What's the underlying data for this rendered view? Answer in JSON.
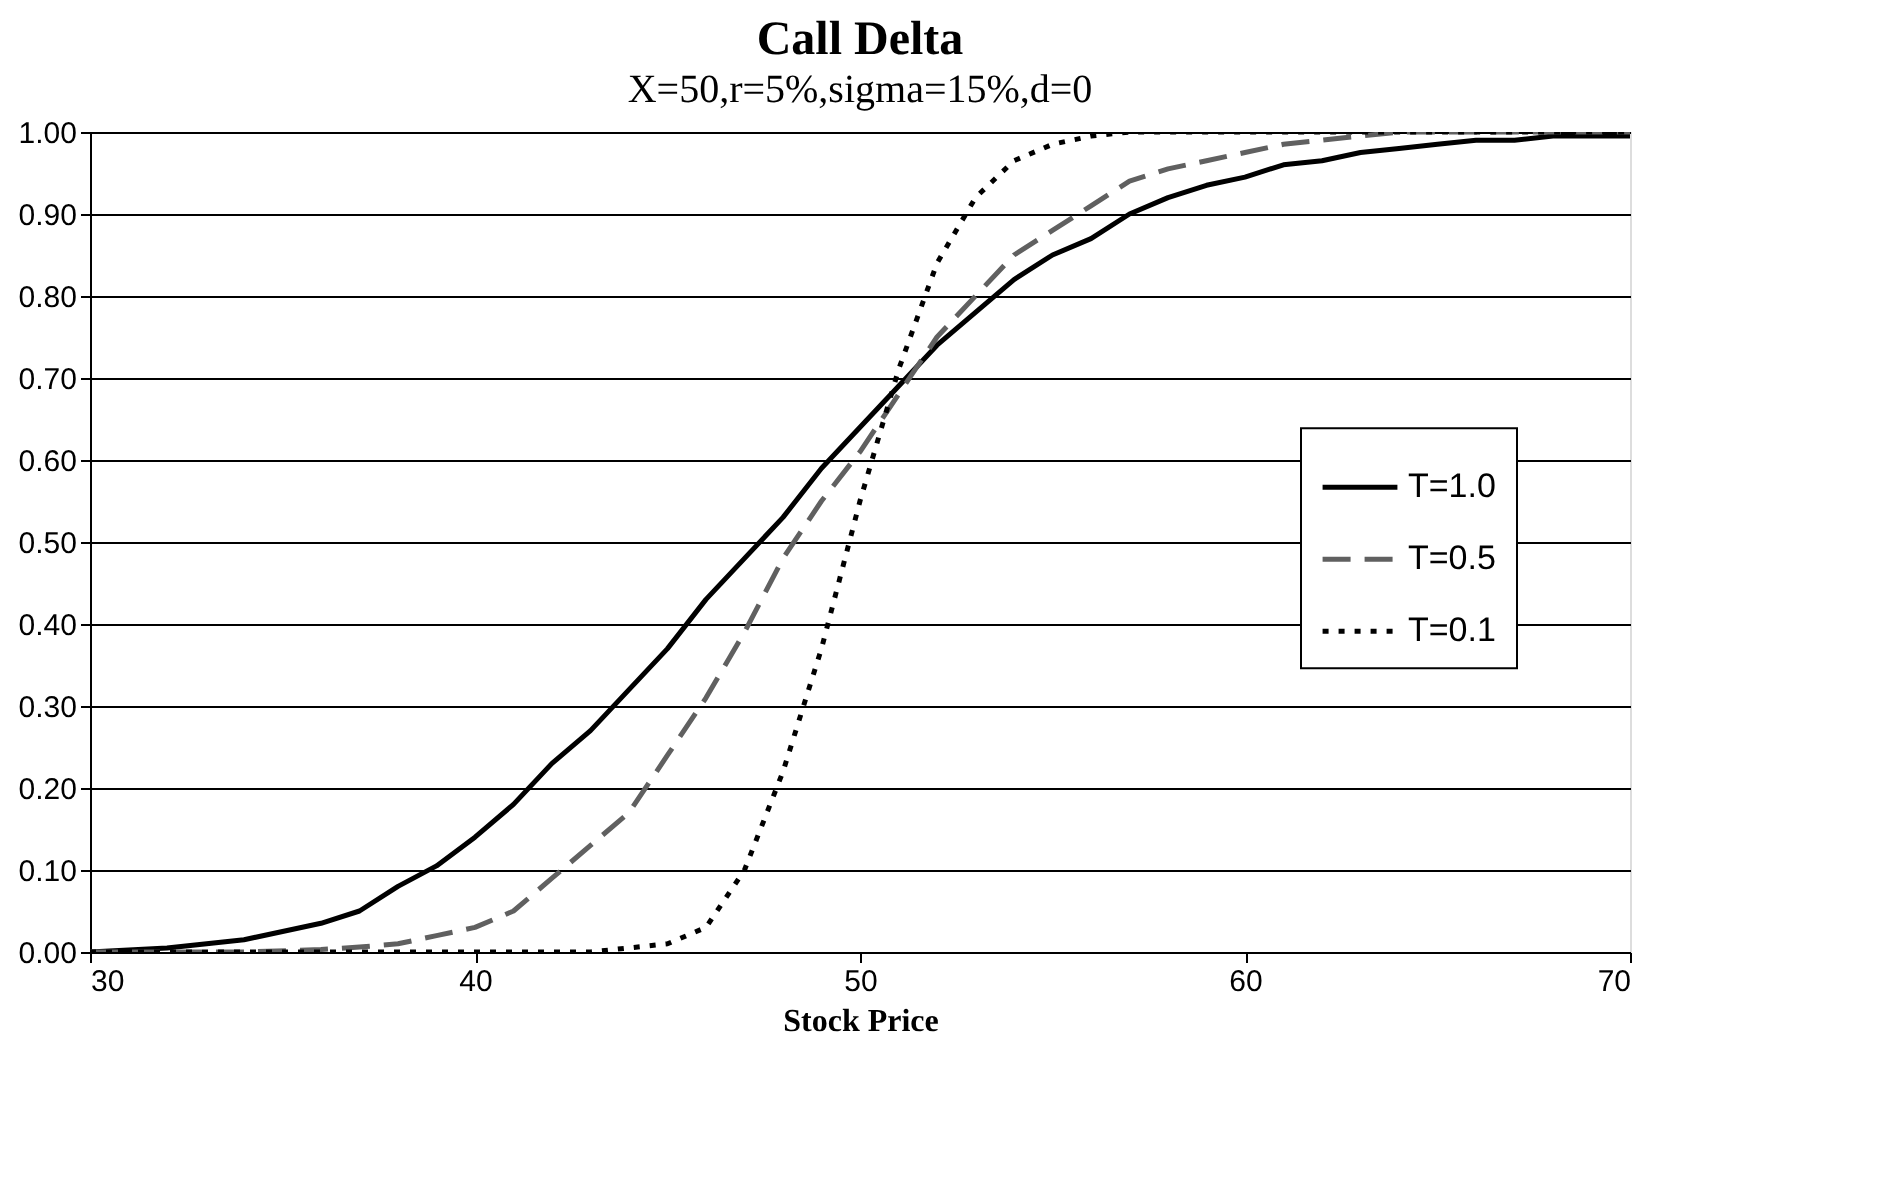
{
  "chart_data": {
    "type": "line",
    "title": "Call Delta",
    "subtitle": "X=50,r=5%,sigma=15%,d=0",
    "xlabel": "Stock Price",
    "xlim": [
      30,
      70
    ],
    "xticks": [
      30,
      40,
      50,
      60,
      70
    ],
    "ylim": [
      0,
      1
    ],
    "yticks": [
      {
        "value": 0,
        "label": "0.00"
      },
      {
        "value": 0.1,
        "label": "0.10"
      },
      {
        "value": 0.2,
        "label": "0.20"
      },
      {
        "value": 0.3,
        "label": "0.30"
      },
      {
        "value": 0.4,
        "label": "0.40"
      },
      {
        "value": 0.5,
        "label": "0.50"
      },
      {
        "value": 0.6,
        "label": "0.60"
      },
      {
        "value": 0.7,
        "label": "0.70"
      },
      {
        "value": 0.8,
        "label": "0.80"
      },
      {
        "value": 0.9,
        "label": "0.90"
      },
      {
        "value": 1,
        "label": "1.00"
      }
    ],
    "grid": "y",
    "legend": "right",
    "marker": "none",
    "x": [
      30,
      32,
      34,
      36,
      37,
      38,
      39,
      40,
      41,
      42,
      43,
      44,
      45,
      46,
      47,
      48,
      49,
      50,
      51,
      52,
      53,
      54,
      55,
      56,
      57,
      58,
      59,
      60,
      61,
      62,
      63,
      64,
      65,
      66,
      67,
      68,
      70
    ],
    "series": [
      {
        "name": "T=1.0",
        "color": "#000000",
        "line_style": "solid",
        "values": [
          0.0,
          0.005,
          0.015,
          0.035,
          0.05,
          0.08,
          0.105,
          0.14,
          0.18,
          0.23,
          0.27,
          0.32,
          0.37,
          0.43,
          0.48,
          0.53,
          0.59,
          0.64,
          0.69,
          0.74,
          0.78,
          0.82,
          0.85,
          0.87,
          0.9,
          0.92,
          0.935,
          0.945,
          0.96,
          0.965,
          0.975,
          0.98,
          0.985,
          0.99,
          0.99,
          0.995,
          0.995
        ]
      },
      {
        "name": "T=0.5",
        "color": "#606060",
        "line_style": "dashed",
        "values": [
          0.0,
          0.0,
          0.0,
          0.003,
          0.006,
          0.01,
          0.02,
          0.03,
          0.05,
          0.09,
          0.13,
          0.17,
          0.24,
          0.31,
          0.39,
          0.48,
          0.55,
          0.61,
          0.68,
          0.75,
          0.8,
          0.85,
          0.88,
          0.91,
          0.94,
          0.955,
          0.965,
          0.975,
          0.985,
          0.99,
          0.995,
          1.0,
          1.0,
          1.0,
          1.0,
          1.0,
          1.0
        ]
      },
      {
        "name": "T=0.1",
        "color": "#000000",
        "line_style": "dotted",
        "values": [
          0.0,
          0.0,
          0.0,
          0.0,
          0.0,
          0.0,
          0.0,
          0.0,
          0.0,
          0.0,
          0.0,
          0.005,
          0.01,
          0.03,
          0.1,
          0.22,
          0.37,
          0.55,
          0.71,
          0.84,
          0.92,
          0.965,
          0.985,
          0.995,
          1.0,
          1.0,
          1.0,
          1.0,
          1.0,
          1.0,
          1.0,
          1.0,
          1.0,
          1.0,
          1.0,
          1.0,
          1.0
        ]
      }
    ]
  }
}
